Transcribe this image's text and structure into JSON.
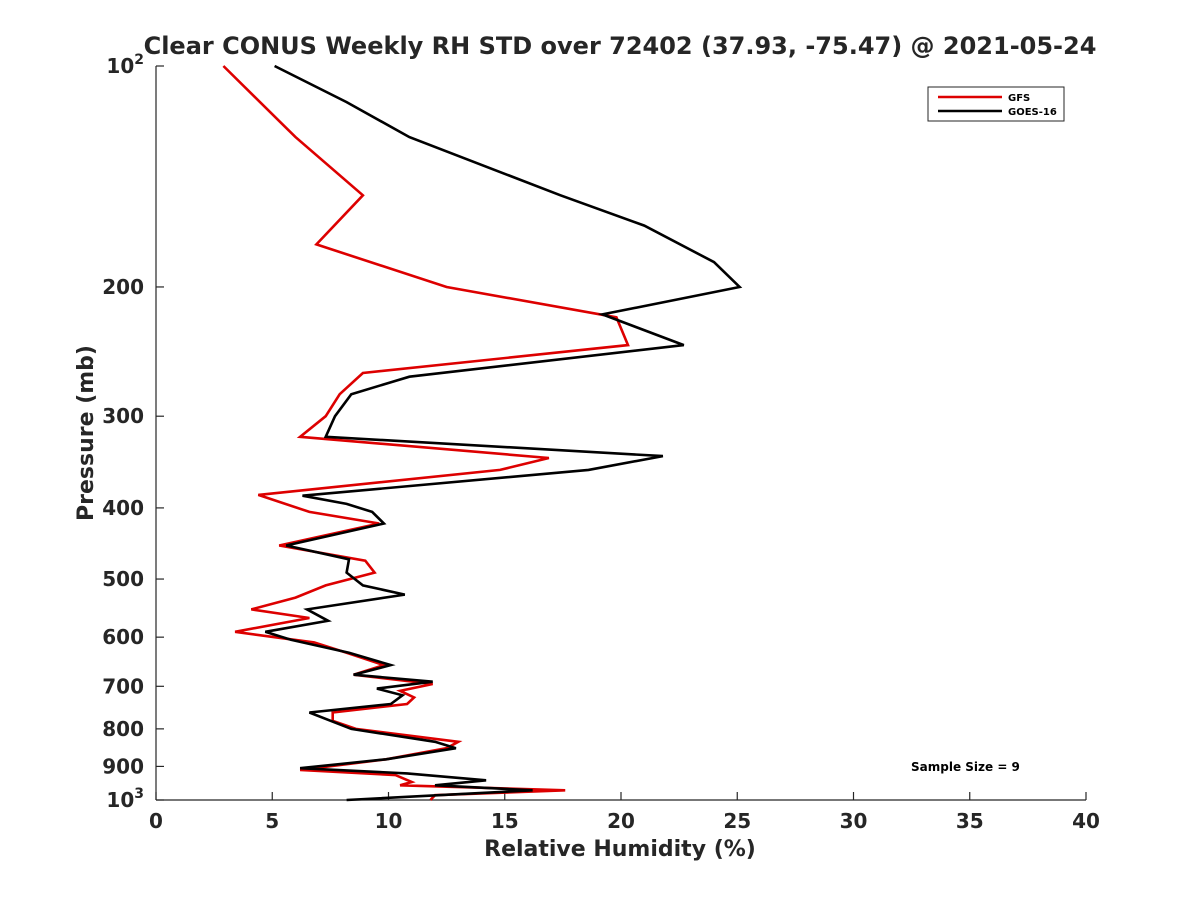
{
  "chart_data": {
    "type": "line",
    "title": "Clear CONUS Weekly RH STD over 72402 (37.93, -75.47) @ 2021-05-24",
    "xlabel": "Relative Humidity (%)",
    "ylabel": "Pressure (mb)",
    "xlim": [
      0,
      40
    ],
    "ylim": [
      100,
      1000
    ],
    "yscale": "log",
    "y_reversed": true,
    "x_ticks": [
      0,
      5,
      10,
      15,
      20,
      25,
      30,
      35,
      40
    ],
    "x_tick_labels": [
      "0",
      "5",
      "10",
      "15",
      "20",
      "25",
      "30",
      "35",
      "40"
    ],
    "y_ticks": [
      100,
      200,
      300,
      400,
      500,
      600,
      700,
      800,
      900,
      1000
    ],
    "y_tick_labels": [
      {
        "base": "10",
        "exp": "2"
      },
      {
        "base": "200",
        "exp": ""
      },
      {
        "base": "300",
        "exp": ""
      },
      {
        "base": "400",
        "exp": ""
      },
      {
        "base": "500",
        "exp": ""
      },
      {
        "base": "600",
        "exp": ""
      },
      {
        "base": "700",
        "exp": ""
      },
      {
        "base": "800",
        "exp": ""
      },
      {
        "base": "900",
        "exp": ""
      },
      {
        "base": "10",
        "exp": "3"
      }
    ],
    "legend_position": "top-right",
    "annotation": "Sample Size = 9",
    "series": [
      {
        "name": "GFS",
        "color": "#dd0000",
        "points": [
          [
            2.9,
            100
          ],
          [
            6.0,
            125
          ],
          [
            8.9,
            150
          ],
          [
            6.9,
            175
          ],
          [
            12.5,
            200
          ],
          [
            19.8,
            220
          ],
          [
            20.3,
            240
          ],
          [
            8.9,
            262
          ],
          [
            7.9,
            280
          ],
          [
            7.3,
            300
          ],
          [
            6.2,
            320
          ],
          [
            16.9,
            342
          ],
          [
            14.8,
            355
          ],
          [
            4.4,
            384
          ],
          [
            6.6,
            405
          ],
          [
            9.6,
            420
          ],
          [
            5.3,
            450
          ],
          [
            9.0,
            472
          ],
          [
            9.4,
            490
          ],
          [
            7.3,
            510
          ],
          [
            6.0,
            530
          ],
          [
            4.1,
            550
          ],
          [
            6.6,
            565
          ],
          [
            3.4,
            590
          ],
          [
            5.1,
            600
          ],
          [
            6.8,
            610
          ],
          [
            8.2,
            630
          ],
          [
            9.8,
            655
          ],
          [
            8.5,
            675
          ],
          [
            11.9,
            695
          ],
          [
            10.5,
            710
          ],
          [
            11.1,
            725
          ],
          [
            10.8,
            740
          ],
          [
            7.6,
            760
          ],
          [
            7.6,
            780
          ],
          [
            8.6,
            800
          ],
          [
            13.0,
            833
          ],
          [
            12.5,
            850
          ],
          [
            9.9,
            880
          ],
          [
            6.2,
            910
          ],
          [
            10.3,
            925
          ],
          [
            11.0,
            945
          ],
          [
            10.5,
            955
          ],
          [
            17.6,
            970
          ],
          [
            12.0,
            985
          ],
          [
            11.8,
            1000
          ]
        ]
      },
      {
        "name": "GOES-16",
        "color": "#000000",
        "points": [
          [
            5.1,
            100
          ],
          [
            8.2,
            112
          ],
          [
            10.9,
            125
          ],
          [
            17.4,
            150
          ],
          [
            21.0,
            165
          ],
          [
            24.0,
            185
          ],
          [
            25.1,
            200
          ],
          [
            19.2,
            218
          ],
          [
            22.7,
            240
          ],
          [
            10.9,
            265
          ],
          [
            8.4,
            280
          ],
          [
            7.7,
            300
          ],
          [
            7.3,
            320
          ],
          [
            21.8,
            340
          ],
          [
            18.6,
            355
          ],
          [
            6.3,
            385
          ],
          [
            8.2,
            395
          ],
          [
            9.3,
            405
          ],
          [
            9.8,
            420
          ],
          [
            5.6,
            450
          ],
          [
            8.3,
            470
          ],
          [
            8.2,
            490
          ],
          [
            8.9,
            510
          ],
          [
            10.7,
            525
          ],
          [
            6.5,
            550
          ],
          [
            7.4,
            570
          ],
          [
            4.7,
            590
          ],
          [
            5.8,
            605
          ],
          [
            8.3,
            630
          ],
          [
            10.1,
            655
          ],
          [
            8.5,
            675
          ],
          [
            11.9,
            690
          ],
          [
            9.5,
            705
          ],
          [
            10.6,
            720
          ],
          [
            10.1,
            740
          ],
          [
            6.6,
            760
          ],
          [
            8.4,
            800
          ],
          [
            12.0,
            833
          ],
          [
            12.9,
            850
          ],
          [
            9.9,
            880
          ],
          [
            6.2,
            905
          ],
          [
            10.8,
            920
          ],
          [
            14.2,
            940
          ],
          [
            12.0,
            955
          ],
          [
            16.2,
            970
          ],
          [
            13.5,
            980
          ],
          [
            8.2,
            1000
          ]
        ]
      }
    ]
  }
}
